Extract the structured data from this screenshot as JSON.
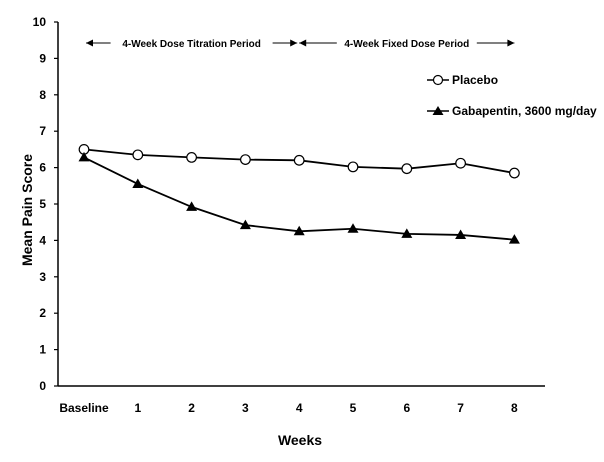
{
  "chart_data": {
    "type": "line",
    "title": "",
    "xlabel": "Weeks",
    "ylabel": "Mean Pain Score",
    "ylim": [
      0,
      10
    ],
    "yticks": [
      0,
      1,
      2,
      3,
      4,
      5,
      6,
      7,
      8,
      9,
      10
    ],
    "categories": [
      "Baseline",
      "1",
      "2",
      "3",
      "4",
      "5",
      "6",
      "7",
      "8"
    ],
    "grid": false,
    "legend_position": "top-right",
    "series": [
      {
        "name": "Placebo",
        "marker": "open-circle",
        "values": [
          6.5,
          6.35,
          6.28,
          6.22,
          6.2,
          6.02,
          5.97,
          6.12,
          5.85
        ]
      },
      {
        "name": "Gabapentin, 3600 mg/day",
        "marker": "filled-triangle",
        "values": [
          6.28,
          5.55,
          4.92,
          4.42,
          4.25,
          4.32,
          4.18,
          4.15,
          4.02
        ]
      }
    ],
    "annotations": [
      {
        "text": "4-Week Dose Titration Period",
        "from": "Baseline",
        "to": "4"
      },
      {
        "text": "4-Week Fixed Dose Period",
        "from": "4",
        "to": "8"
      }
    ],
    "colors": {
      "line": "#000000",
      "background": "#ffffff"
    }
  }
}
